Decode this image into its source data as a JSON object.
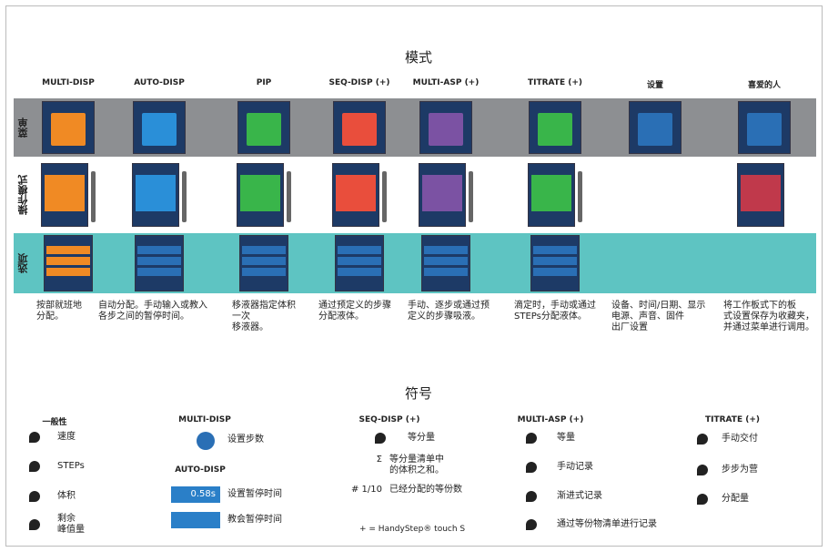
{
  "header": {
    "title": "模式"
  },
  "rows": [
    "菜单",
    "操作模式",
    "选项"
  ],
  "modes": [
    {
      "name": "MULTI-DISP",
      "description": "按部就班地\n分配。"
    },
    {
      "name": "AUTO-DISP",
      "description": "自动分配。手动输入或教入\n各步之间的暂停时间。"
    },
    {
      "name": "PIP",
      "description": "移液器指定体积\n一次\n移液器。"
    },
    {
      "name": "SEQ-DISP (+)",
      "description": "通过预定义的步骤\n分配液体。"
    },
    {
      "name": "MULTI-ASP (+)",
      "description": "手动、逐步或通过预\n定义的步骤吸液。"
    },
    {
      "name": "TITRATE (+)",
      "description": "滴定时，手动或通过\nSTEPs分配液体。"
    },
    {
      "name": "设置",
      "description": "设备、时间/日期、显示\n电源、声音、固件\n出厂设置"
    },
    {
      "name": "喜爱的人",
      "description": "将工作板式下的板\n式设置保存为收藏夹，\n并通过菜单进行调用。"
    }
  ],
  "symbols": {
    "title": "符号",
    "general": {
      "title": "一般性",
      "items": [
        "速度",
        "STEPs",
        "体积",
        "剩余\n峰值量"
      ]
    },
    "multi_disp": {
      "title": "MULTI-DISP",
      "items": [
        "设置步数"
      ]
    },
    "auto_disp": {
      "title": "AUTO-DISP",
      "items": [
        {
          "icon": "0.58s",
          "label": "设置暂停时间"
        },
        {
          "label": "教会暂停时间"
        }
      ]
    },
    "seq_disp": {
      "title": "SEQ-DISP (+)",
      "items": [
        {
          "label": "等分量"
        },
        {
          "icon": "Σ",
          "label": "等分量清单中\n的体积之和。"
        },
        {
          "icon": "# 1/10",
          "label": "已经分配的等份数"
        }
      ],
      "footnote": "+ = HandyStep® touch S"
    },
    "multi_asp": {
      "title": "MULTI-ASP (+)",
      "items": [
        "等量",
        "手动记录",
        "渐进式记录",
        "通过等份物清单进行记录"
      ]
    },
    "titrate": {
      "title": "TITRATE (+)",
      "items": [
        "手动交付",
        "步步为营",
        "分配量"
      ]
    }
  }
}
